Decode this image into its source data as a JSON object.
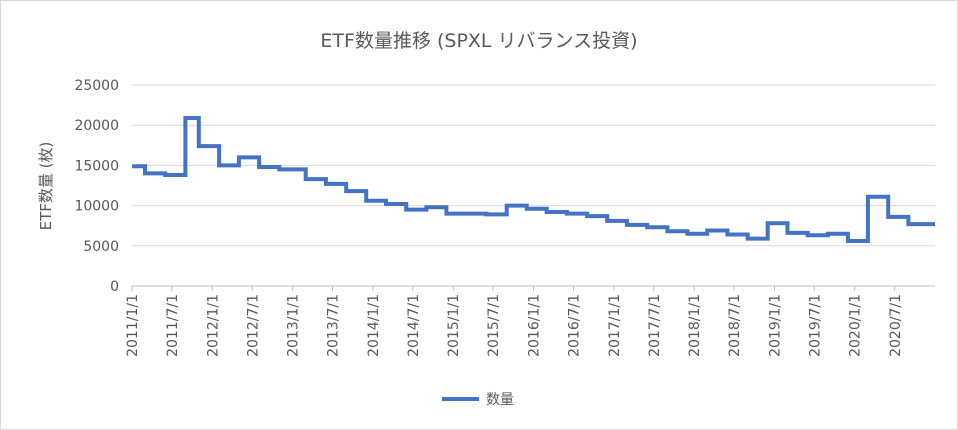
{
  "chart_data": {
    "type": "line",
    "title": "ETF数量推移 (SPXL リバランス投資)",
    "xlabel": "",
    "ylabel": "ETF数量 (枚)",
    "ylim": [
      0,
      25000
    ],
    "yticks": [
      "25000",
      "20000",
      "15000",
      "10000",
      "5000",
      "0"
    ],
    "xticks": [
      "2011/1/1",
      "2011/7/1",
      "2012/1/1",
      "2012/7/1",
      "2013/1/1",
      "2013/7/1",
      "2014/1/1",
      "2014/7/1",
      "2015/1/1",
      "2015/7/1",
      "2016/1/1",
      "2016/7/1",
      "2017/1/1",
      "2017/7/1",
      "2018/1/1",
      "2018/7/1",
      "2019/1/1",
      "2019/7/1",
      "2020/1/1",
      "2020/7/1"
    ],
    "grid": true,
    "legend_position": "bottom",
    "step": true,
    "series": [
      {
        "name": "数量",
        "color": "#4472c4",
        "points": [
          [
            "2011-01-01",
            14900
          ],
          [
            "2011-03-01",
            14000
          ],
          [
            "2011-06-01",
            13800
          ],
          [
            "2011-09-01",
            20900
          ],
          [
            "2011-11-01",
            17400
          ],
          [
            "2012-02-01",
            15000
          ],
          [
            "2012-05-01",
            16000
          ],
          [
            "2012-08-01",
            14800
          ],
          [
            "2012-11-01",
            14500
          ],
          [
            "2013-03-01",
            13300
          ],
          [
            "2013-06-01",
            12700
          ],
          [
            "2013-09-01",
            11800
          ],
          [
            "2013-12-01",
            10600
          ],
          [
            "2014-03-01",
            10200
          ],
          [
            "2014-06-01",
            9500
          ],
          [
            "2014-09-01",
            9800
          ],
          [
            "2014-12-01",
            9000
          ],
          [
            "2015-06-01",
            8900
          ],
          [
            "2015-09-01",
            10000
          ],
          [
            "2015-12-01",
            9600
          ],
          [
            "2016-03-01",
            9200
          ],
          [
            "2016-06-01",
            9000
          ],
          [
            "2016-09-01",
            8700
          ],
          [
            "2016-12-01",
            8100
          ],
          [
            "2017-03-01",
            7600
          ],
          [
            "2017-06-01",
            7300
          ],
          [
            "2017-09-01",
            6800
          ],
          [
            "2017-12-01",
            6500
          ],
          [
            "2018-03-01",
            6900
          ],
          [
            "2018-06-01",
            6400
          ],
          [
            "2018-09-01",
            5900
          ],
          [
            "2018-12-01",
            7800
          ],
          [
            "2019-03-01",
            6600
          ],
          [
            "2019-06-01",
            6300
          ],
          [
            "2019-09-01",
            6500
          ],
          [
            "2019-12-01",
            5600
          ],
          [
            "2020-03-01",
            11100
          ],
          [
            "2020-06-01",
            8600
          ],
          [
            "2020-09-01",
            7700
          ],
          [
            "2020-12-31",
            7700
          ]
        ]
      }
    ]
  }
}
